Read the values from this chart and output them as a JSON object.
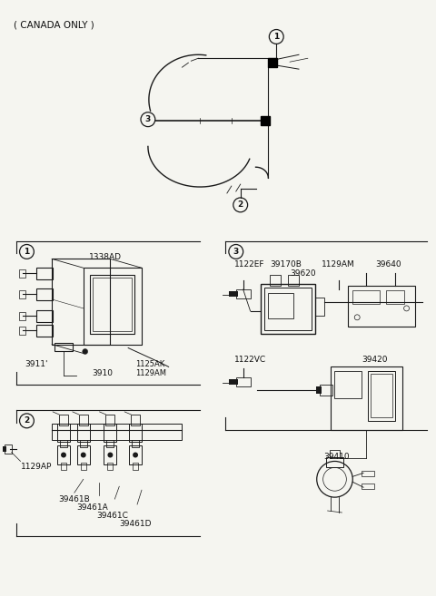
{
  "bg_color": "#f5f5f0",
  "line_color": "#1a1a1a",
  "text_color": "#111111",
  "fig_width": 4.8,
  "fig_height": 6.57,
  "dpi": 100,
  "labels": {
    "canada_only": "( CANADA ONLY )",
    "box1_label": "1338AD",
    "box1_part1": "3911'",
    "box1_part2": "3910",
    "box1_part3": "1125AK",
    "box1_part4": "1129AM",
    "box2_label1": "1129AP",
    "box2_label2": "39461B",
    "box2_label3": "39461A",
    "box2_label4": "39461C",
    "box2_label5": "39461D",
    "box3_label1": "1122EF",
    "box3_label2": "39170B",
    "box3_label3": "1129AM",
    "box3_label4": "39640",
    "box3_label5": "39620",
    "box3_label6": "1122VC",
    "box3_label7": "39420",
    "box3_label8": "39410"
  }
}
